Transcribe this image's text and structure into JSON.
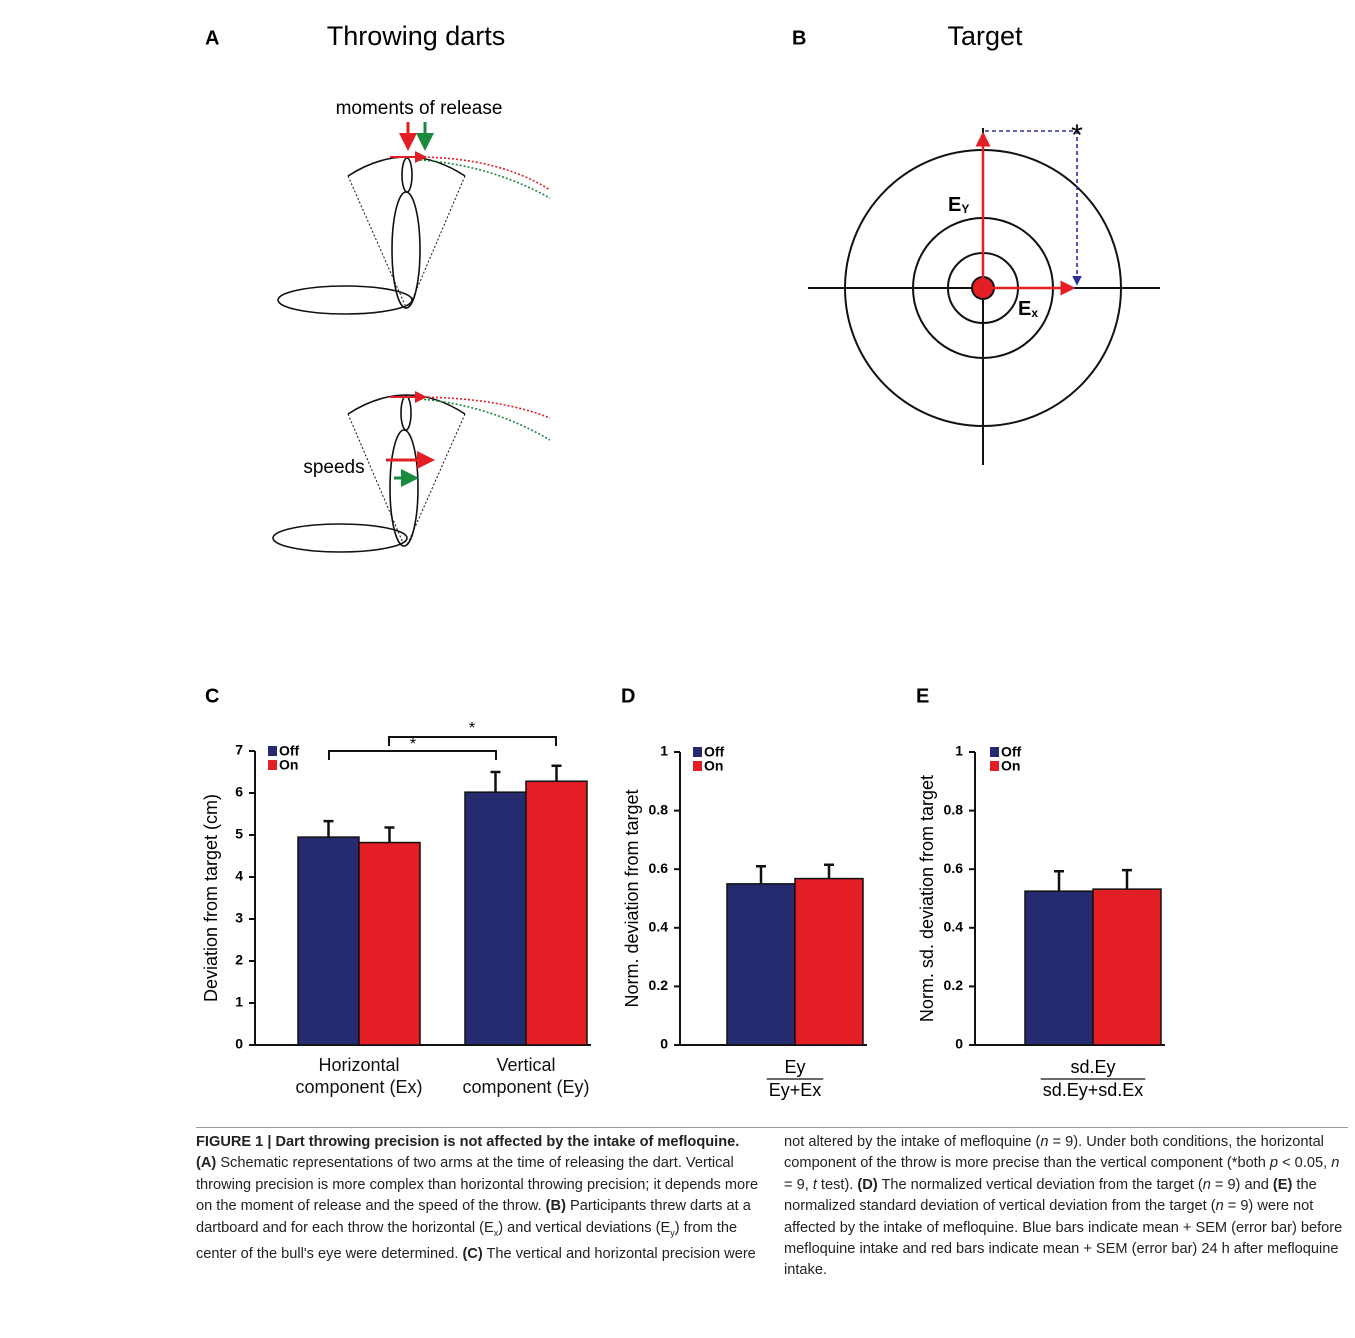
{
  "panels": {
    "a": {
      "label": "A",
      "title": "Throwing darts",
      "release": "moments of release",
      "speeds": "speeds"
    },
    "b": {
      "label": "B",
      "title": "Target",
      "ey": {
        "base": "E",
        "sub": "Y"
      },
      "ex": {
        "base": "E",
        "sub": "x"
      },
      "star": "*"
    },
    "c": {
      "label": "C"
    },
    "d": {
      "label": "D"
    },
    "e": {
      "label": "E"
    }
  },
  "chart_data": [
    {
      "type": "bar",
      "y_label": "Deviation from target (cm)",
      "categories": [
        "Horizontal component (Ex)",
        "Vertical component (Ey)"
      ],
      "series": [
        {
          "name": "Off",
          "color": "#262a6e",
          "values": [
            4.95,
            6.02
          ],
          "errors": [
            0.38,
            0.48
          ]
        },
        {
          "name": "On",
          "color": "#e31e24",
          "values": [
            4.82,
            6.28
          ],
          "errors": [
            0.36,
            0.37
          ]
        }
      ],
      "ylim": [
        0,
        7
      ],
      "yticks": [
        0,
        1,
        2,
        3,
        4,
        5,
        6,
        7
      ],
      "annotations": [
        "*",
        "*"
      ],
      "legend": "upper left"
    },
    {
      "type": "bar",
      "y_label": "Norm. deviation from target",
      "x_label": {
        "numerator": "Ey",
        "denominator": "Ey+Ex"
      },
      "series": [
        {
          "name": "Off",
          "color": "#262a6e",
          "values": [
            0.55
          ],
          "errors": [
            0.06
          ]
        },
        {
          "name": "On",
          "color": "#e31e24",
          "values": [
            0.568
          ],
          "errors": [
            0.047
          ]
        }
      ],
      "ylim": [
        0,
        1
      ],
      "yticks": [
        0,
        0.2,
        0.4,
        0.6,
        0.8,
        1
      ],
      "legend": "upper left"
    },
    {
      "type": "bar",
      "y_label": "Norm. sd. deviation from target",
      "x_label": {
        "numerator": "sd.Ey",
        "denominator": "sd.Ey+sd.Ex"
      },
      "series": [
        {
          "name": "Off",
          "color": "#262a6e",
          "values": [
            0.525
          ],
          "errors": [
            0.068
          ]
        },
        {
          "name": "On",
          "color": "#e31e24",
          "values": [
            0.532
          ],
          "errors": [
            0.065
          ]
        }
      ],
      "ylim": [
        0,
        1
      ],
      "yticks": [
        0,
        0.2,
        0.4,
        0.6,
        0.8,
        1
      ],
      "legend": "upper left"
    }
  ],
  "caption": {
    "runs": [
      {
        "text": "FIGURE 1 | Dart throwing precision is not affected by the intake of mefloquine.",
        "style": "b"
      },
      {
        "text": " (A)",
        "style": "b"
      },
      {
        "text": " Schematic representations of two arms at the time of releasing the dart. Vertical throwing precision is more complex than horizontal throwing precision; it depends more on the moment of release and the speed of the throw. "
      },
      {
        "text": "(B)",
        "style": "b"
      },
      {
        "text": " Participants threw darts at a dartboard and for each throw the horizontal (E"
      },
      {
        "text": "x",
        "style": "sub"
      },
      {
        "text": ") and vertical deviations (E"
      },
      {
        "text": "y",
        "style": "sub"
      },
      {
        "text": ") from the center of the bull's eye were determined. "
      },
      {
        "text": "(C)",
        "style": "b"
      },
      {
        "text": " The vertical and horizontal precision were not altered by the intake of mefloquine ("
      },
      {
        "text": "n",
        "style": "i"
      },
      {
        "text": " = 9). Under both conditions, the horizontal component of the throw is more precise than the vertical component (*both "
      },
      {
        "text": "p",
        "style": "i"
      },
      {
        "text": " < 0.05, "
      },
      {
        "text": "n",
        "style": "i"
      },
      {
        "text": " = 9, "
      },
      {
        "text": "t",
        "style": "i"
      },
      {
        "text": " test). "
      },
      {
        "text": "(D)",
        "style": "b"
      },
      {
        "text": " The normalized vertical deviation from the target ("
      },
      {
        "text": "n",
        "style": "i"
      },
      {
        "text": " = 9) and "
      },
      {
        "text": "(E)",
        "style": "b"
      },
      {
        "text": " the normalized standard deviation of vertical deviation from the target ("
      },
      {
        "text": "n",
        "style": "i"
      },
      {
        "text": " = 9) were not affected by the intake of mefloquine. Blue bars indicate mean + SEM (error bar) before mefloquine intake and red bars indicate mean + SEM (error bar) 24 h after mefloquine intake."
      }
    ]
  }
}
